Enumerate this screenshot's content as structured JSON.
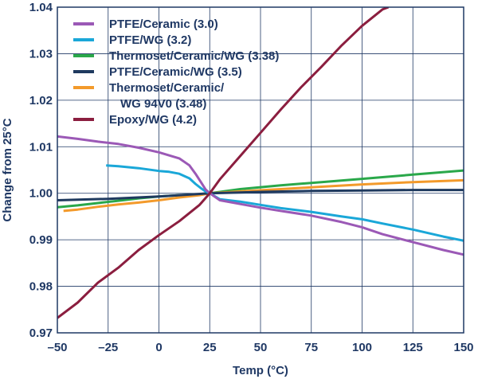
{
  "chart_data": {
    "type": "line",
    "title": "",
    "xlabel": "Temp (°C)",
    "ylabel": "Change from 25°C",
    "xlim": [
      -50,
      150
    ],
    "ylim": [
      0.97,
      1.04
    ],
    "xticks": [
      -50,
      -25,
      0,
      25,
      50,
      75,
      100,
      125,
      150
    ],
    "xtick_labels": [
      "–50",
      "–25",
      "0",
      "25",
      "50",
      "75",
      "100",
      "125",
      "150"
    ],
    "yticks": [
      0.97,
      0.98,
      0.99,
      1.0,
      1.01,
      1.02,
      1.03,
      1.04
    ],
    "ytick_labels": [
      "0.97",
      "0.98",
      "0.99",
      "1.00",
      "1.01",
      "1.02",
      "1.03",
      "1.04"
    ],
    "grid": true,
    "legend_position": "top-left",
    "series": [
      {
        "name": "PTFE/Ceramic (3.0)",
        "legend_lines": [
          "PTFE/Ceramic (3.0)"
        ],
        "color": "#9b59b6",
        "x": [
          -50,
          -40,
          -30,
          -20,
          -10,
          0,
          10,
          15,
          18,
          21,
          23,
          25,
          30,
          40,
          50,
          60,
          75,
          90,
          100,
          110,
          125,
          140,
          150
        ],
        "y": [
          1.0122,
          1.0117,
          1.0111,
          1.0106,
          1.0098,
          1.0088,
          1.0075,
          1.006,
          1.0042,
          1.0022,
          1.0008,
          1.0,
          0.9985,
          0.9977,
          0.9969,
          0.9962,
          0.9952,
          0.9938,
          0.9927,
          0.9912,
          0.9895,
          0.9878,
          0.9868
        ]
      },
      {
        "name": "PTFE/WG (3.2)",
        "legend_lines": [
          "PTFE/WG (3.2)"
        ],
        "color": "#1aa7d8",
        "x": [
          -26,
          -20,
          -10,
          0,
          5,
          10,
          15,
          18,
          21,
          23,
          25,
          30,
          40,
          50,
          60,
          75,
          90,
          100,
          110,
          125,
          140,
          150
        ],
        "y": [
          1.006,
          1.0058,
          1.0054,
          1.0048,
          1.0046,
          1.0042,
          1.0032,
          1.002,
          1.001,
          1.0004,
          1.0,
          0.9987,
          0.9982,
          0.9975,
          0.9968,
          0.996,
          0.995,
          0.9944,
          0.9935,
          0.9922,
          0.9907,
          0.9898
        ]
      },
      {
        "name": "Thermoset/Ceramic/WG (3.38)",
        "legend_lines": [
          "Thermoset/Ceramic/WG (3.38)"
        ],
        "color": "#2aa84a",
        "x": [
          -50,
          -40,
          -30,
          -20,
          -10,
          0,
          10,
          20,
          25,
          40,
          60,
          80,
          100,
          125,
          150
        ],
        "y": [
          0.997,
          0.9974,
          0.9979,
          0.9984,
          0.9989,
          0.9993,
          0.9996,
          0.9998,
          1.0,
          1.0009,
          1.0017,
          1.0024,
          1.0031,
          1.004,
          1.0049
        ]
      },
      {
        "name": "PTFE/Ceramic/WG (3.5)",
        "legend_lines": [
          "PTFE/Ceramic/WG (3.5)"
        ],
        "color": "#1f3a5f",
        "x": [
          -50,
          -25,
          0,
          25,
          50,
          75,
          100,
          125,
          150
        ],
        "y": [
          0.9985,
          0.9988,
          0.9993,
          1.0,
          1.0003,
          1.0005,
          1.0006,
          1.0007,
          1.0007
        ]
      },
      {
        "name": "Thermoset/Ceramic/WG 94V0 (3.48)",
        "legend_lines": [
          "Thermoset/Ceramic/",
          "WG 94V0 (3.48)"
        ],
        "color": "#f39a2b",
        "x": [
          -47,
          -40,
          -30,
          -20,
          -10,
          0,
          10,
          20,
          25,
          40,
          60,
          80,
          100,
          125,
          150
        ],
        "y": [
          0.9962,
          0.9965,
          0.9971,
          0.9976,
          0.998,
          0.9985,
          0.9991,
          0.9996,
          1.0,
          1.0004,
          1.0009,
          1.0014,
          1.0019,
          1.0024,
          1.0028
        ]
      },
      {
        "name": "Epoxy/WG (4.2)",
        "legend_lines": [
          "Epoxy/WG (4.2)"
        ],
        "color": "#8b1e3f",
        "x": [
          -50,
          -40,
          -30,
          -20,
          -10,
          0,
          10,
          20,
          25,
          30,
          40,
          50,
          60,
          70,
          80,
          90,
          100,
          110,
          113
        ],
        "y": [
          0.9732,
          0.9765,
          0.9808,
          0.984,
          0.9878,
          0.991,
          0.994,
          0.9975,
          1.0,
          1.003,
          1.008,
          1.013,
          1.018,
          1.0228,
          1.0272,
          1.0318,
          1.036,
          1.0395,
          1.04
        ]
      }
    ]
  }
}
